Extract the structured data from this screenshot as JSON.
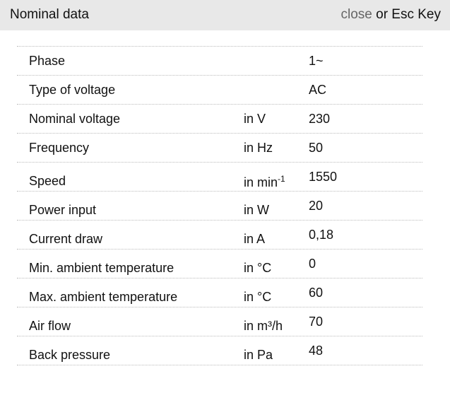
{
  "header": {
    "title": "Nominal data",
    "close_link": "close",
    "close_suffix": " or Esc Key"
  },
  "rows": [
    {
      "label": "Phase",
      "unit": "",
      "value": "1~"
    },
    {
      "label": "Type of voltage",
      "unit": "",
      "value": "AC"
    },
    {
      "label": "Nominal voltage",
      "unit": "in V",
      "value": "230"
    },
    {
      "label": "Frequency",
      "unit": "in Hz",
      "value": "50"
    },
    {
      "label": "Speed",
      "unit": "in min",
      "unit_sup": "-1",
      "value": "1550"
    },
    {
      "label": "Power input",
      "unit": "in W",
      "value": "20"
    },
    {
      "label": "Current draw",
      "unit": "in A",
      "value": "0,18"
    },
    {
      "label": "Min. ambient temperature",
      "unit": "in °C",
      "value": "0"
    },
    {
      "label": "Max. ambient temperature",
      "unit": "in °C",
      "value": "60"
    },
    {
      "label": "Air flow",
      "unit": "in m³/h",
      "value": "70"
    },
    {
      "label": "Back pressure",
      "unit": "in Pa",
      "value": "48"
    }
  ]
}
